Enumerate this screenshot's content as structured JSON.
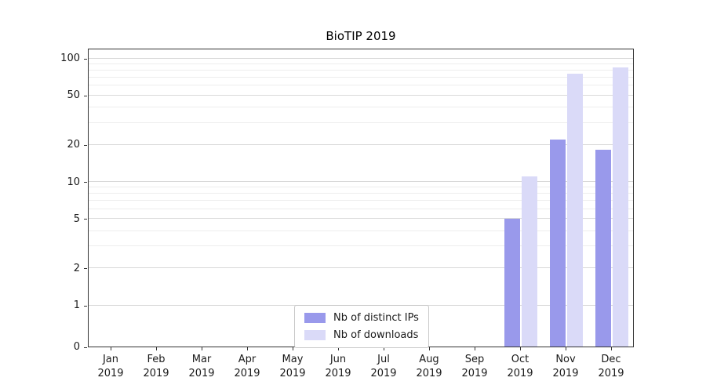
{
  "chart_data": {
    "type": "bar",
    "title": "BioTIP 2019",
    "categories": [
      "Jan",
      "Feb",
      "Mar",
      "Apr",
      "May",
      "Jun",
      "Jul",
      "Aug",
      "Sep",
      "Oct",
      "Nov",
      "Dec"
    ],
    "year_label": "2019",
    "series": [
      {
        "name": "Nb of distinct IPs",
        "color": "#9999eb",
        "values": [
          0,
          0,
          0,
          0,
          0,
          0,
          0,
          0,
          0,
          5,
          22,
          18
        ]
      },
      {
        "name": "Nb of downloads",
        "color": "#dadaf8",
        "values": [
          0,
          0,
          0,
          0,
          0,
          0,
          0,
          0,
          0,
          11,
          75,
          84
        ]
      }
    ],
    "yticks": [
      0,
      1,
      2,
      5,
      10,
      20,
      50,
      100
    ],
    "y_minor_gridlines": [
      3,
      4,
      6,
      7,
      8,
      9,
      30,
      40,
      60,
      70,
      80,
      90
    ],
    "yscale": "symlog",
    "ylim": [
      0,
      120
    ],
    "grid": "horizontal",
    "legend_position": "bottom-center",
    "colors": {
      "axis": "#333333",
      "major_grid": "#d9d9d9",
      "minor_grid": "#ededed",
      "background": "#ffffff"
    }
  }
}
